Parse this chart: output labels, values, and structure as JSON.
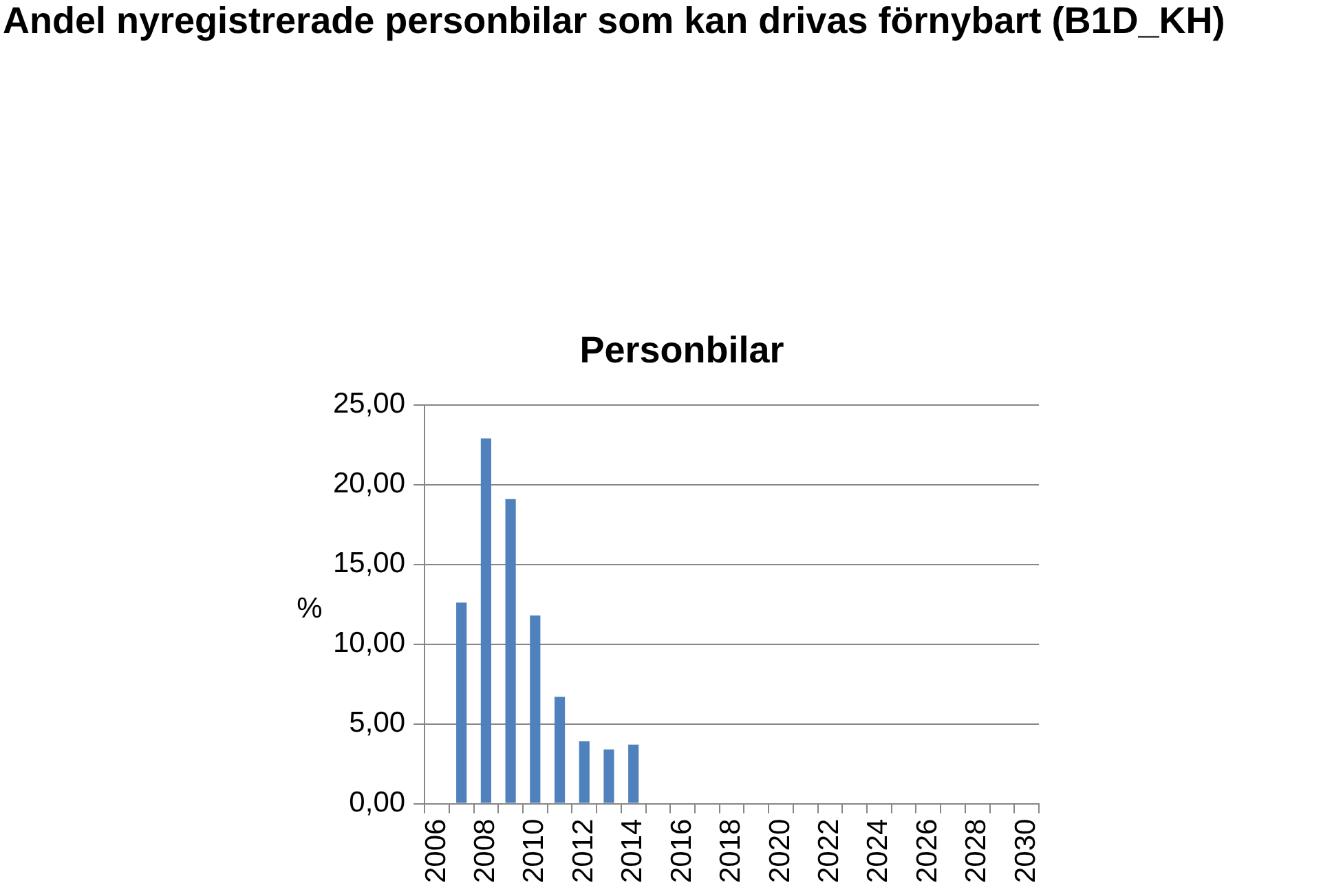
{
  "chart_data": {
    "type": "bar",
    "title": "Personbilar",
    "subtitle": "Andel nyregistrerade personbilar som kan drivas förnybart (B1D_KH)",
    "ylabel": "%",
    "categories": [
      "2006",
      null,
      "2008",
      null,
      "2010",
      null,
      "2012",
      null,
      "2014",
      null,
      "2016",
      null,
      "2018",
      null,
      "2020",
      null,
      "2022",
      null,
      "2024",
      null,
      "2026",
      null,
      "2028",
      null,
      "2030"
    ],
    "values": [
      null,
      12.6,
      22.9,
      19.1,
      11.8,
      6.7,
      3.9,
      3.4,
      3.7,
      null,
      null,
      null,
      null,
      null,
      null,
      null,
      null,
      null,
      null,
      null,
      null,
      null,
      null,
      null,
      null
    ],
    "color": "#4f81bd",
    "ylim": [
      0,
      25
    ],
    "yticks": [
      {
        "value": 0,
        "label": "0,00"
      },
      {
        "value": 5,
        "label": "5,00"
      },
      {
        "value": 10,
        "label": "10,00"
      },
      {
        "value": 15,
        "label": "15,00"
      },
      {
        "value": 20,
        "label": "20,00"
      },
      {
        "value": 25,
        "label": "25,00"
      }
    ],
    "grid": "y",
    "legend": false
  }
}
